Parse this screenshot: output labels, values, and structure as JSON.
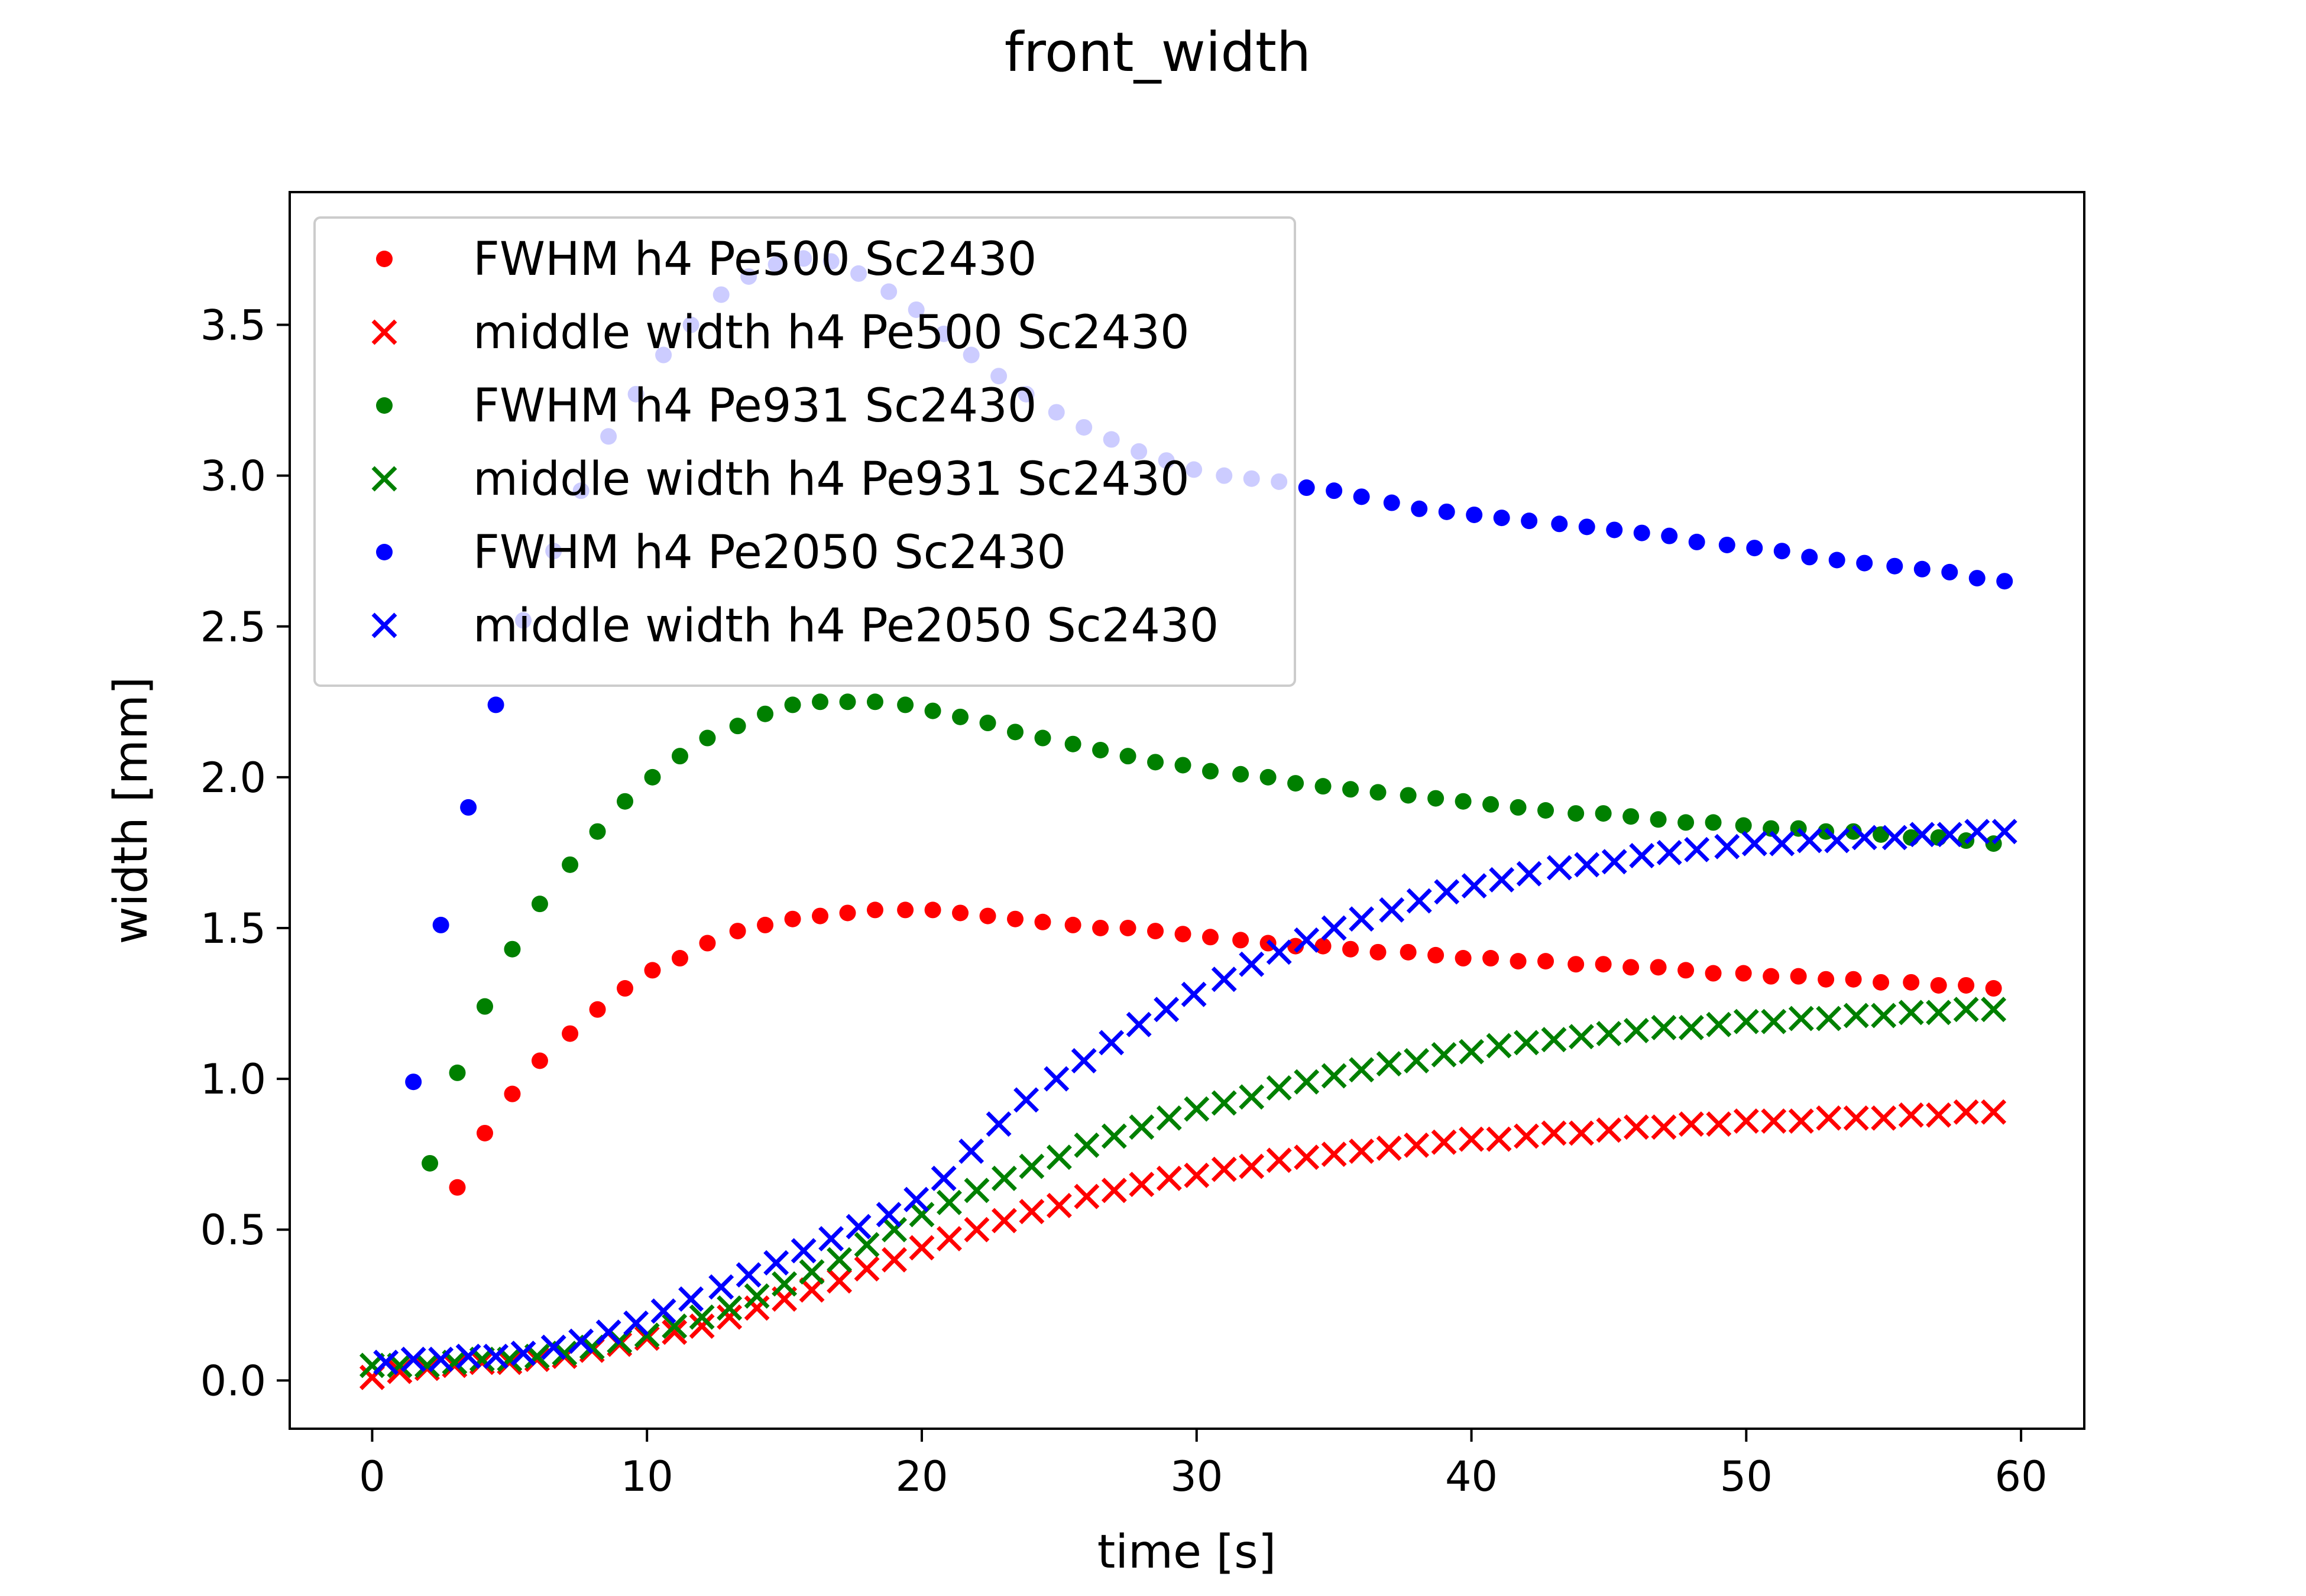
{
  "chart_data": {
    "type": "scatter",
    "title": "front_width",
    "xlabel": "time [s]",
    "ylabel": "width [mm]",
    "xlim": [
      -3,
      62.3
    ],
    "ylim": [
      -0.16,
      3.94
    ],
    "xticks": [
      0,
      10,
      20,
      30,
      40,
      50,
      60
    ],
    "xtick_labels": [
      "0",
      "10",
      "20",
      "30",
      "40",
      "50",
      "60"
    ],
    "yticks": [
      0.0,
      0.5,
      1.0,
      1.5,
      2.0,
      2.5,
      3.0,
      3.5
    ],
    "ytick_labels": [
      "0.0",
      "0.5",
      "1.0",
      "1.5",
      "2.0",
      "2.5",
      "3.0",
      "3.5"
    ],
    "grid": false,
    "legend_position": "top-left",
    "legend_alpha": 0.8,
    "series": [
      {
        "name": "FWHM h4 Pe500 Sc2430",
        "marker": "dot",
        "color": "#ff0000",
        "x": [
          3.1,
          4.1,
          5.1,
          6.1,
          7.2,
          8.2,
          9.2,
          10.2,
          11.2,
          12.2,
          13.3,
          14.3,
          15.3,
          16.3,
          17.3,
          18.3,
          19.4,
          20.4,
          21.4,
          22.4,
          23.4,
          24.4,
          25.5,
          26.5,
          27.5,
          28.5,
          29.5,
          30.5,
          31.6,
          32.6,
          33.6,
          34.6,
          35.6,
          36.6,
          37.7,
          38.7,
          39.7,
          40.7,
          41.7,
          42.7,
          43.8,
          44.8,
          45.8,
          46.8,
          47.8,
          48.8,
          49.9,
          50.9,
          51.9,
          52.9,
          53.9,
          54.9,
          56.0,
          57.0,
          58.0,
          59.0
        ],
        "y": [
          0.64,
          0.82,
          0.95,
          1.06,
          1.15,
          1.23,
          1.3,
          1.36,
          1.4,
          1.45,
          1.49,
          1.51,
          1.53,
          1.54,
          1.55,
          1.56,
          1.56,
          1.56,
          1.55,
          1.54,
          1.53,
          1.52,
          1.51,
          1.5,
          1.5,
          1.49,
          1.48,
          1.47,
          1.46,
          1.45,
          1.44,
          1.44,
          1.43,
          1.42,
          1.42,
          1.41,
          1.4,
          1.4,
          1.39,
          1.39,
          1.38,
          1.38,
          1.37,
          1.37,
          1.36,
          1.35,
          1.35,
          1.34,
          1.34,
          1.33,
          1.33,
          1.32,
          1.32,
          1.31,
          1.31,
          1.3
        ]
      },
      {
        "name": "middle width h4 Pe500 Sc2430",
        "marker": "x",
        "color": "#ff0000",
        "x": [
          0,
          1,
          2,
          3,
          4,
          5,
          6,
          7,
          8,
          9,
          10,
          11,
          12,
          13,
          14,
          15,
          16,
          17,
          18,
          19,
          20,
          21,
          22,
          23,
          24,
          25,
          26,
          27,
          28,
          29,
          30,
          31,
          32,
          33,
          34,
          35,
          36,
          37,
          38,
          39,
          40,
          41,
          42,
          43,
          44,
          45,
          46,
          47,
          48,
          49,
          50,
          51,
          52,
          53,
          54,
          55,
          56,
          57,
          58,
          59
        ],
        "y": [
          0.01,
          0.03,
          0.04,
          0.05,
          0.06,
          0.06,
          0.07,
          0.08,
          0.1,
          0.12,
          0.14,
          0.16,
          0.18,
          0.21,
          0.24,
          0.27,
          0.3,
          0.33,
          0.37,
          0.4,
          0.44,
          0.47,
          0.5,
          0.53,
          0.56,
          0.58,
          0.61,
          0.63,
          0.65,
          0.67,
          0.68,
          0.7,
          0.71,
          0.73,
          0.74,
          0.75,
          0.76,
          0.77,
          0.78,
          0.79,
          0.8,
          0.8,
          0.81,
          0.82,
          0.82,
          0.83,
          0.84,
          0.84,
          0.85,
          0.85,
          0.86,
          0.86,
          0.86,
          0.87,
          0.87,
          0.87,
          0.88,
          0.88,
          0.89,
          0.89
        ]
      },
      {
        "name": "FWHM h4 Pe931 Sc2430",
        "marker": "dot",
        "color": "#008000",
        "x": [
          2.1,
          3.1,
          4.1,
          5.1,
          6.1,
          7.2,
          8.2,
          9.2,
          10.2,
          11.2,
          12.2,
          13.3,
          14.3,
          15.3,
          16.3,
          17.3,
          18.3,
          19.4,
          20.4,
          21.4,
          22.4,
          23.4,
          24.4,
          25.5,
          26.5,
          27.5,
          28.5,
          29.5,
          30.5,
          31.6,
          32.6,
          33.6,
          34.6,
          35.6,
          36.6,
          37.7,
          38.7,
          39.7,
          40.7,
          41.7,
          42.7,
          43.8,
          44.8,
          45.8,
          46.8,
          47.8,
          48.8,
          49.9,
          50.9,
          51.9,
          52.9,
          53.9,
          54.9,
          56.0,
          57.0,
          58.0,
          59.0
        ],
        "y": [
          0.72,
          1.02,
          1.24,
          1.43,
          1.58,
          1.71,
          1.82,
          1.92,
          2.0,
          2.07,
          2.13,
          2.17,
          2.21,
          2.24,
          2.25,
          2.25,
          2.25,
          2.24,
          2.22,
          2.2,
          2.18,
          2.15,
          2.13,
          2.11,
          2.09,
          2.07,
          2.05,
          2.04,
          2.02,
          2.01,
          2.0,
          1.98,
          1.97,
          1.96,
          1.95,
          1.94,
          1.93,
          1.92,
          1.91,
          1.9,
          1.89,
          1.88,
          1.88,
          1.87,
          1.86,
          1.85,
          1.85,
          1.84,
          1.83,
          1.83,
          1.82,
          1.82,
          1.81,
          1.8,
          1.8,
          1.79,
          1.78
        ]
      },
      {
        "name": "middle width h4 Pe931 Sc2430",
        "marker": "x",
        "color": "#008000",
        "x": [
          0,
          1,
          2,
          3,
          4,
          5,
          6,
          7,
          8,
          9,
          10,
          11,
          12,
          13,
          14,
          15,
          16,
          17,
          18,
          19,
          20,
          21,
          22,
          23,
          24,
          25,
          26,
          27,
          28,
          29,
          30,
          31,
          32,
          33,
          34,
          35,
          36,
          37,
          38,
          39,
          40,
          41,
          42,
          43,
          44,
          45,
          46,
          47,
          48,
          49,
          50,
          51,
          52,
          53,
          54,
          55,
          56,
          57,
          58,
          59
        ],
        "y": [
          0.05,
          0.05,
          0.05,
          0.06,
          0.07,
          0.07,
          0.08,
          0.09,
          0.11,
          0.13,
          0.15,
          0.18,
          0.21,
          0.24,
          0.28,
          0.32,
          0.36,
          0.4,
          0.45,
          0.5,
          0.55,
          0.59,
          0.63,
          0.67,
          0.71,
          0.74,
          0.78,
          0.81,
          0.84,
          0.87,
          0.9,
          0.92,
          0.94,
          0.97,
          0.99,
          1.01,
          1.03,
          1.05,
          1.06,
          1.08,
          1.09,
          1.11,
          1.12,
          1.13,
          1.14,
          1.15,
          1.16,
          1.17,
          1.17,
          1.18,
          1.19,
          1.19,
          1.2,
          1.2,
          1.21,
          1.21,
          1.22,
          1.22,
          1.23,
          1.23
        ]
      },
      {
        "name": "FWHM h4 Pe2050 Sc2430",
        "marker": "dot",
        "color": "#0000ff",
        "x": [
          1.5,
          2.5,
          3.5,
          4.5,
          5.5,
          6.6,
          7.6,
          8.6,
          9.6,
          10.6,
          11.6,
          12.7,
          13.7,
          14.7,
          15.7,
          16.7,
          17.7,
          18.8,
          19.8,
          20.8,
          21.8,
          22.8,
          23.8,
          24.9,
          25.9,
          26.9,
          27.9,
          28.9,
          29.9,
          31.0,
          32.0,
          33.0,
          34.0,
          35.0,
          36.0,
          37.1,
          38.1,
          39.1,
          40.1,
          41.1,
          42.1,
          43.2,
          44.2,
          45.2,
          46.2,
          47.2,
          48.2,
          49.3,
          50.3,
          51.3,
          52.3,
          53.3,
          54.3,
          55.4,
          56.4,
          57.4,
          58.4,
          59.4
        ],
        "y": [
          0.99,
          1.51,
          1.9,
          2.24,
          2.52,
          2.75,
          2.95,
          3.13,
          3.27,
          3.4,
          3.5,
          3.6,
          3.66,
          3.7,
          3.72,
          3.71,
          3.67,
          3.61,
          3.55,
          3.47,
          3.4,
          3.33,
          3.27,
          3.21,
          3.16,
          3.12,
          3.08,
          3.05,
          3.02,
          3.0,
          2.99,
          2.98,
          2.96,
          2.95,
          2.93,
          2.91,
          2.89,
          2.88,
          2.87,
          2.86,
          2.85,
          2.84,
          2.83,
          2.82,
          2.81,
          2.8,
          2.78,
          2.77,
          2.76,
          2.75,
          2.73,
          2.72,
          2.71,
          2.7,
          2.69,
          2.68,
          2.66,
          2.65
        ]
      },
      {
        "name": "middle width h4 Pe2050 Sc2430",
        "marker": "x",
        "color": "#0000ff",
        "x": [
          0.5,
          1.5,
          2.5,
          3.5,
          4.5,
          5.5,
          6.6,
          7.6,
          8.6,
          9.6,
          10.6,
          11.6,
          12.7,
          13.7,
          14.7,
          15.7,
          16.7,
          17.7,
          18.8,
          19.8,
          20.8,
          21.8,
          22.8,
          23.8,
          24.9,
          25.9,
          26.9,
          27.9,
          28.9,
          29.9,
          31.0,
          32.0,
          33.0,
          34.0,
          35.0,
          36.0,
          37.1,
          38.1,
          39.1,
          40.1,
          41.1,
          42.1,
          43.2,
          44.2,
          45.2,
          46.2,
          47.2,
          48.2,
          49.3,
          50.3,
          51.3,
          52.3,
          53.3,
          54.3,
          55.4,
          56.4,
          57.4,
          58.4,
          59.4
        ],
        "y": [
          0.06,
          0.07,
          0.07,
          0.08,
          0.08,
          0.09,
          0.11,
          0.13,
          0.16,
          0.19,
          0.23,
          0.27,
          0.31,
          0.35,
          0.39,
          0.43,
          0.47,
          0.51,
          0.55,
          0.6,
          0.67,
          0.76,
          0.85,
          0.93,
          1.0,
          1.06,
          1.12,
          1.18,
          1.23,
          1.28,
          1.33,
          1.38,
          1.42,
          1.46,
          1.5,
          1.53,
          1.56,
          1.59,
          1.62,
          1.64,
          1.66,
          1.68,
          1.7,
          1.71,
          1.72,
          1.74,
          1.75,
          1.76,
          1.77,
          1.78,
          1.78,
          1.79,
          1.79,
          1.8,
          1.8,
          1.81,
          1.81,
          1.82,
          1.82
        ]
      }
    ]
  }
}
